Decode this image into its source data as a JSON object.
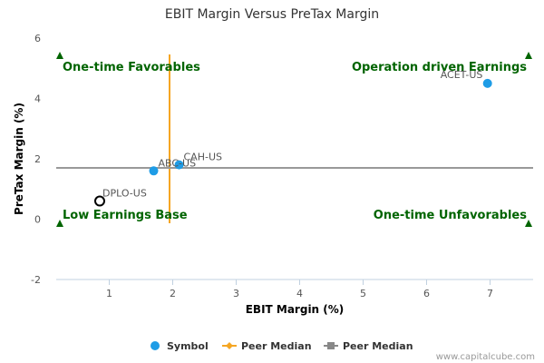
{
  "chart_data": {
    "type": "scatter",
    "title": "EBIT Margin Versus PreTax Margin",
    "xlabel": "EBIT Margin (%)",
    "ylabel": "PreTax Margin (%)",
    "xlim": [
      0.0,
      7.7
    ],
    "ylim": [
      -2,
      6
    ],
    "x_ticks": [
      "1",
      "2",
      "3",
      "4",
      "5",
      "6",
      "7"
    ],
    "y_ticks": [
      "6",
      "4",
      "2",
      "0",
      "-2"
    ],
    "grid": false,
    "points": [
      {
        "label": "ACET-US",
        "x": 6.96,
        "y": 4.5,
        "style": "filled"
      },
      {
        "label": "CAH-US",
        "x": 2.1,
        "y": 1.8,
        "style": "filled"
      },
      {
        "label": "ABC-US",
        "x": 1.7,
        "y": 1.6,
        "style": "filled"
      },
      {
        "label": "DPLO-US",
        "x": 0.85,
        "y": 0.6,
        "style": "hollow"
      }
    ],
    "peer_median_x": 1.95,
    "peer_median_y": 1.7,
    "quadrant_labels": {
      "top_left": "One-time Favorables",
      "top_right": "Operation driven Earnings",
      "bottom_left": "Low Earnings Base",
      "bottom_right": "One-time Unfavorables"
    },
    "legend": [
      {
        "label": "Symbol",
        "color": "#1e9ce6",
        "marker": "circle"
      },
      {
        "label": "Peer Median",
        "color": "#f5a623",
        "marker": "diamond"
      },
      {
        "label": "Peer Median",
        "color": "#888888",
        "marker": "square"
      }
    ],
    "legend_placement": "bottom",
    "colors": {
      "point": "#1e9ce6",
      "median_x_line": "#f5a623",
      "median_y_line": "#999999",
      "quadrant": "#006400",
      "axis": "#c0d0e0"
    }
  },
  "credit": "www.capitalcube.com"
}
